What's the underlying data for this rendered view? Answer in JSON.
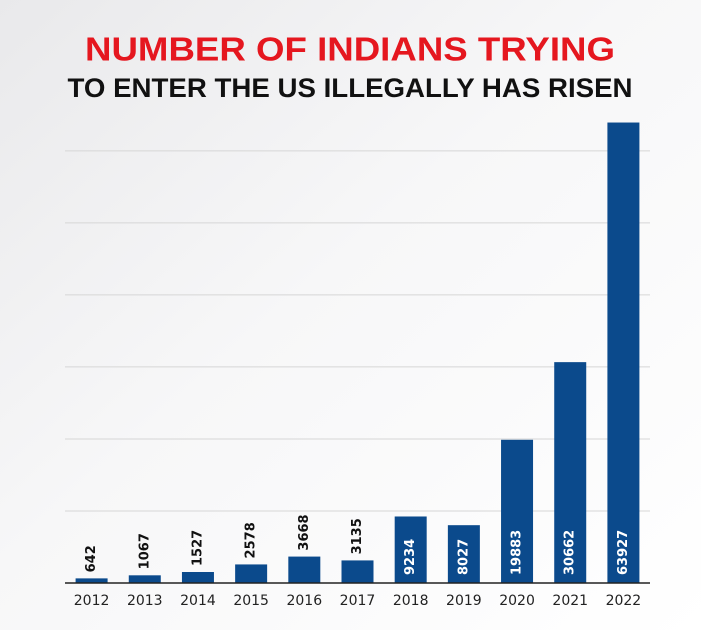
{
  "chart_data": {
    "type": "bar",
    "title": "NUMBER OF INDIANS TRYING",
    "subtitle": "TO ENTER THE US ILLEGALLY HAS RISEN",
    "title_color": "#e5171f",
    "categories": [
      "2012",
      "2013",
      "2014",
      "2015",
      "2016",
      "2017",
      "2018",
      "2019",
      "2020",
      "2021",
      "2022"
    ],
    "values": [
      642,
      1067,
      1527,
      2578,
      3668,
      3135,
      9234,
      8027,
      19883,
      30662,
      63927
    ],
    "color": "#0b4a8c",
    "ylim": [
      0,
      64000
    ],
    "yticks": [
      0,
      10000,
      20000,
      30000,
      40000,
      50000,
      60000
    ],
    "grid": true
  }
}
